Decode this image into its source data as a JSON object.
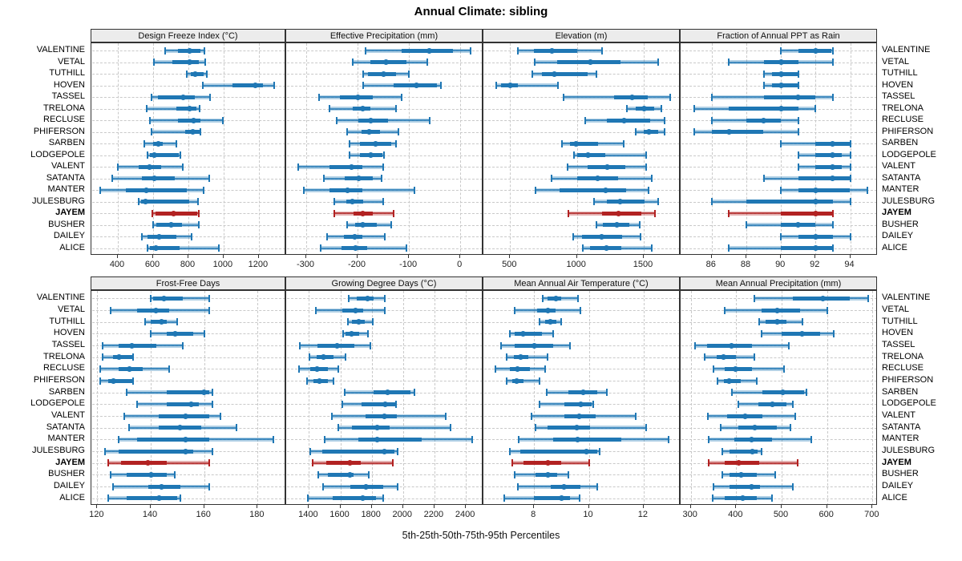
{
  "title": "Annual Climate: sibling",
  "caption": "5th-25th-50th-75th-95th Percentiles",
  "percentile_labels": [
    "5th",
    "25th",
    "50th",
    "75th",
    "95th"
  ],
  "highlight_station": "JAYEM",
  "colors": {
    "series_blue": "#1f77b4",
    "series_blue_light": "rgba(31,119,180,0.35)",
    "highlight_red": "#b22222",
    "highlight_red_light": "rgba(178,34,34,0.35)",
    "strip_bg": "#ececec",
    "grid": "#c9c9c9",
    "panel_border": "#333333"
  },
  "stations": [
    "VALENTINE",
    "VETAL",
    "TUTHILL",
    "HOVEN",
    "TASSEL",
    "TRELONA",
    "RECLUSE",
    "PHIFERSON",
    "SARBEN",
    "LODGEPOLE",
    "VALENT",
    "SATANTA",
    "MANTER",
    "JULESBURG",
    "JAYEM",
    "BUSHER",
    "DAILEY",
    "ALICE"
  ],
  "chart_data": [
    {
      "type": "interval",
      "title": "Design Freeze Index (°C)",
      "row": 0,
      "col": 0,
      "domain": [
        250,
        1355
      ],
      "ticks": [
        400,
        600,
        800,
        1000,
        1200
      ],
      "values": [
        [
          670,
          740,
          805,
          870,
          890
        ],
        [
          605,
          710,
          805,
          860,
          895
        ],
        [
          790,
          815,
          840,
          885,
          905
        ],
        [
          880,
          1050,
          1180,
          1225,
          1285
        ],
        [
          590,
          625,
          770,
          835,
          925
        ],
        [
          565,
          730,
          805,
          845,
          865
        ],
        [
          580,
          740,
          830,
          870,
          995
        ],
        [
          590,
          780,
          825,
          865,
          870
        ],
        [
          550,
          600,
          630,
          655,
          730
        ],
        [
          570,
          580,
          605,
          745,
          755
        ],
        [
          400,
          520,
          580,
          645,
          770
        ],
        [
          370,
          535,
          605,
          725,
          920
        ],
        [
          300,
          445,
          560,
          790,
          885
        ],
        [
          520,
          530,
          555,
          805,
          855
        ],
        [
          595,
          615,
          715,
          850,
          860
        ],
        [
          600,
          620,
          700,
          765,
          860
        ],
        [
          535,
          570,
          635,
          730,
          820
        ],
        [
          570,
          580,
          615,
          750,
          975
        ]
      ]
    },
    {
      "type": "interval",
      "title": "Effective Precipitation (mm)",
      "row": 0,
      "col": 1,
      "domain": [
        -339,
        45
      ],
      "ticks": [
        -300,
        -200,
        -100,
        0
      ],
      "values": [
        [
          -185,
          -115,
          -60,
          -15,
          20
        ],
        [
          -210,
          -175,
          -145,
          -105,
          -65
        ],
        [
          -190,
          -180,
          -150,
          -125,
          -100
        ],
        [
          -190,
          -130,
          -85,
          -45,
          -38
        ],
        [
          -275,
          -235,
          -200,
          -170,
          -115
        ],
        [
          -255,
          -210,
          -190,
          -175,
          -125
        ],
        [
          -240,
          -198,
          -175,
          -140,
          -60
        ],
        [
          -220,
          -193,
          -178,
          -156,
          -120
        ],
        [
          -215,
          -195,
          -165,
          -135,
          -125
        ],
        [
          -215,
          -195,
          -175,
          -152,
          -148
        ],
        [
          -315,
          -255,
          -212,
          -190,
          -150
        ],
        [
          -265,
          -225,
          -198,
          -170,
          -153
        ],
        [
          -305,
          -255,
          -220,
          -190,
          -90
        ],
        [
          -245,
          -222,
          -210,
          -190,
          -150
        ],
        [
          -245,
          -208,
          -190,
          -170,
          -130
        ],
        [
          -220,
          -205,
          -190,
          -162,
          -135
        ],
        [
          -260,
          -227,
          -205,
          -190,
          -147
        ],
        [
          -272,
          -232,
          -204,
          -182,
          -105
        ]
      ]
    },
    {
      "type": "interval",
      "title": "Elevation (m)",
      "row": 0,
      "col": 2,
      "domain": [
        300,
        1776
      ],
      "ticks": [
        500,
        1000,
        1500
      ],
      "values": [
        [
          555,
          675,
          810,
          1000,
          1190
        ],
        [
          685,
          850,
          1100,
          1325,
          1605
        ],
        [
          665,
          740,
          830,
          1080,
          1145
        ],
        [
          395,
          430,
          500,
          560,
          855
        ],
        [
          900,
          1275,
          1410,
          1530,
          1700
        ],
        [
          1375,
          1440,
          1505,
          1580,
          1630
        ],
        [
          1060,
          1225,
          1355,
          1550,
          1655
        ],
        [
          1440,
          1500,
          1540,
          1605,
          1655
        ],
        [
          890,
          945,
          995,
          1160,
          1350
        ],
        [
          975,
          1000,
          1085,
          1210,
          1515
        ],
        [
          930,
          1080,
          1225,
          1360,
          1520
        ],
        [
          810,
          1000,
          1155,
          1310,
          1560
        ],
        [
          690,
          870,
          1215,
          1370,
          1535
        ],
        [
          1125,
          1225,
          1320,
          1505,
          1605
        ],
        [
          935,
          1185,
          1310,
          1480,
          1585
        ],
        [
          1145,
          1195,
          1300,
          1390,
          1470
        ],
        [
          970,
          1035,
          1185,
          1340,
          1475
        ],
        [
          1045,
          1100,
          1220,
          1335,
          1560
        ]
      ]
    },
    {
      "type": "interval",
      "title": "Fraction of Annual PPT as Rain",
      "row": 0,
      "col": 3,
      "domain": [
        84.2,
        95.6
      ],
      "ticks": [
        86,
        88,
        90,
        92,
        94
      ],
      "values": [
        [
          90,
          91,
          92,
          92.9,
          93
        ],
        [
          87,
          89,
          90,
          91,
          93
        ],
        [
          89,
          89.5,
          90,
          91,
          91
        ],
        [
          89,
          89.5,
          90,
          91,
          91
        ],
        [
          86,
          89,
          91,
          92,
          93
        ],
        [
          85,
          87,
          90,
          91,
          92
        ],
        [
          86,
          88,
          89,
          90,
          91
        ],
        [
          85,
          86,
          87,
          89,
          91
        ],
        [
          90,
          92,
          93,
          94,
          94
        ],
        [
          91,
          92,
          93,
          93.5,
          94
        ],
        [
          91,
          92,
          93,
          93.5,
          94
        ],
        [
          89,
          91,
          93,
          94,
          94
        ],
        [
          90,
          91,
          92,
          94,
          95
        ],
        [
          86,
          88,
          92,
          93,
          94
        ],
        [
          87,
          90,
          92,
          93,
          93
        ],
        [
          88,
          90,
          91,
          92,
          93
        ],
        [
          90,
          91,
          92,
          93,
          94
        ],
        [
          87,
          90,
          92,
          93,
          93
        ]
      ]
    },
    {
      "type": "interval",
      "title": "Frost-Free Days",
      "row": 1,
      "col": 0,
      "domain": [
        117.8,
        190.7
      ],
      "ticks": [
        120,
        140,
        160,
        180
      ],
      "values": [
        [
          140,
          141,
          145,
          152,
          162
        ],
        [
          125,
          135,
          142,
          147,
          162
        ],
        [
          138,
          140,
          144,
          146,
          150
        ],
        [
          140,
          146,
          149,
          156,
          160
        ],
        [
          122,
          128,
          133,
          142,
          152
        ],
        [
          122,
          126,
          128,
          133,
          133.5
        ],
        [
          121,
          128,
          132,
          137,
          147
        ],
        [
          121,
          124,
          126,
          133,
          133.5
        ],
        [
          131,
          146,
          160,
          162,
          163
        ],
        [
          135,
          146,
          155,
          158,
          163
        ],
        [
          130,
          143,
          153,
          162,
          166
        ],
        [
          132,
          143,
          151,
          159,
          172
        ],
        [
          128,
          135,
          153,
          162,
          186
        ],
        [
          123,
          128,
          153,
          156,
          163
        ],
        [
          124,
          129,
          139,
          146,
          162
        ],
        [
          125,
          131,
          140,
          146,
          149
        ],
        [
          126,
          139,
          144,
          151,
          162
        ],
        [
          124,
          131,
          143,
          150,
          151
        ]
      ]
    },
    {
      "type": "interval",
      "title": "Growing Degree Days (°C)",
      "row": 1,
      "col": 1,
      "domain": [
        1255,
        2512
      ],
      "ticks": [
        1400,
        1600,
        1800,
        2000,
        2200,
        2400
      ],
      "values": [
        [
          1655,
          1705,
          1775,
          1810,
          1885
        ],
        [
          1445,
          1610,
          1695,
          1745,
          1885
        ],
        [
          1650,
          1675,
          1715,
          1755,
          1805
        ],
        [
          1615,
          1635,
          1670,
          1720,
          1775
        ],
        [
          1340,
          1455,
          1580,
          1690,
          1790
        ],
        [
          1405,
          1450,
          1490,
          1555,
          1635
        ],
        [
          1335,
          1410,
          1450,
          1520,
          1585
        ],
        [
          1390,
          1430,
          1465,
          1520,
          1555
        ],
        [
          1630,
          1810,
          1900,
          2045,
          2070
        ],
        [
          1610,
          1735,
          1885,
          1950,
          1955
        ],
        [
          1545,
          1760,
          1880,
          1960,
          2270
        ],
        [
          1585,
          1675,
          1835,
          1915,
          2300
        ],
        [
          1500,
          1715,
          1835,
          2120,
          2440
        ],
        [
          1410,
          1485,
          1880,
          1945,
          1965
        ],
        [
          1425,
          1510,
          1660,
          1730,
          1935
        ],
        [
          1460,
          1520,
          1660,
          1685,
          1780
        ],
        [
          1490,
          1665,
          1765,
          1875,
          1965
        ],
        [
          1395,
          1550,
          1745,
          1830,
          1875
        ]
      ]
    },
    {
      "type": "interval",
      "title": "Mean Annual Air Temperature (°C)",
      "row": 1,
      "col": 2,
      "domain": [
        6.15,
        13.35
      ],
      "ticks": [
        8,
        10,
        12
      ],
      "values": [
        [
          8.3,
          8.5,
          8.8,
          9.0,
          9.6
        ],
        [
          7.3,
          8.1,
          8.5,
          8.8,
          9.7
        ],
        [
          8.2,
          8.4,
          8.6,
          8.8,
          9.0
        ],
        [
          7.1,
          7.3,
          7.6,
          8.3,
          8.7
        ],
        [
          6.8,
          7.3,
          8.0,
          8.7,
          9.3
        ],
        [
          7.0,
          7.25,
          7.5,
          7.8,
          8.5
        ],
        [
          6.6,
          7.1,
          7.4,
          7.85,
          8.4
        ],
        [
          7.0,
          7.2,
          7.35,
          7.6,
          8.2
        ],
        [
          8.45,
          9.25,
          9.8,
          10.3,
          10.65
        ],
        [
          8.2,
          9.1,
          9.7,
          10.1,
          10.15
        ],
        [
          7.9,
          9.1,
          9.65,
          10.25,
          11.7
        ],
        [
          8.05,
          8.5,
          9.55,
          10.05,
          12.1
        ],
        [
          7.45,
          8.7,
          9.6,
          11.2,
          12.9
        ],
        [
          7.1,
          7.5,
          9.9,
          10.3,
          10.4
        ],
        [
          7.2,
          7.6,
          8.5,
          9.0,
          10.0
        ],
        [
          7.3,
          8.05,
          8.5,
          8.85,
          9.25
        ],
        [
          7.4,
          8.6,
          9.1,
          9.7,
          10.3
        ],
        [
          6.9,
          8.0,
          9.0,
          9.3,
          9.65
        ]
      ]
    },
    {
      "type": "interval",
      "title": "Mean Annual Precipitation (mm)",
      "row": 1,
      "col": 3,
      "domain": [
        277.6,
        711.8
      ],
      "ticks": [
        300,
        400,
        500,
        600,
        700
      ],
      "values": [
        [
          440,
          525,
          590,
          650,
          690
        ],
        [
          375,
          455,
          490,
          540,
          600
        ],
        [
          450,
          465,
          490,
          510,
          545
        ],
        [
          455,
          500,
          545,
          585,
          615
        ],
        [
          310,
          335,
          390,
          435,
          515
        ],
        [
          330,
          357,
          372,
          400,
          440
        ],
        [
          350,
          375,
          398,
          435,
          505
        ],
        [
          358,
          372,
          385,
          410,
          445
        ],
        [
          390,
          457,
          503,
          550,
          555
        ],
        [
          405,
          448,
          480,
          510,
          525
        ],
        [
          338,
          380,
          420,
          457,
          530
        ],
        [
          365,
          405,
          440,
          490,
          520
        ],
        [
          340,
          395,
          433,
          478,
          565
        ],
        [
          370,
          385,
          435,
          448,
          456
        ],
        [
          340,
          375,
          405,
          450,
          535
        ],
        [
          370,
          385,
          410,
          445,
          485
        ],
        [
          350,
          385,
          433,
          453,
          525
        ],
        [
          348,
          375,
          415,
          445,
          478
        ]
      ]
    }
  ]
}
